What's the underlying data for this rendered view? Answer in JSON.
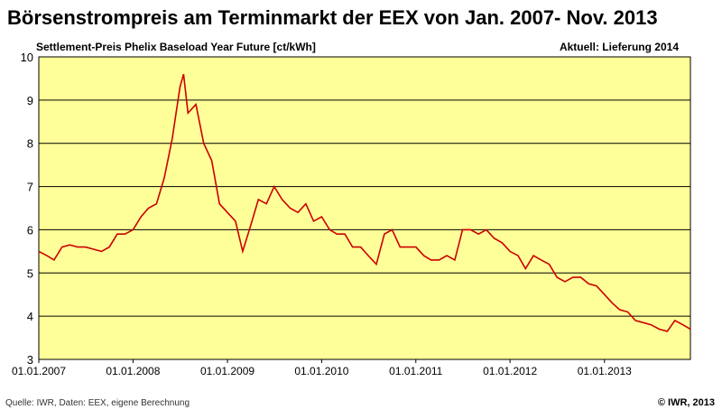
{
  "chart_data": {
    "type": "line",
    "title": "Börsenstrompreis am Terminmarkt der EEX von Jan. 2007- Nov. 2013",
    "subtitle_left": "Settlement-Preis  Phelix  Baseload  Year  Future  [ct/kWh]",
    "subtitle_right": "Aktuell:  Lieferung  2014",
    "source": "Quelle:  IWR, Daten: EEX, eigene Berechnung",
    "copyright": "© IWR, 2013",
    "ylim": [
      3,
      10
    ],
    "yticks": [
      "3",
      "4",
      "5",
      "6",
      "7",
      "8",
      "9",
      "10"
    ],
    "xlim": [
      "2007-01-01",
      "2013-11-30"
    ],
    "xticks": [
      "01.01.2007",
      "01.01.2008",
      "01.01.2009",
      "01.01.2010",
      "01.01.2011",
      "01.01.2012",
      "01.01.2013"
    ],
    "grid": true,
    "colors": {
      "plot_bg": "#ffff99",
      "line": "#cc0000",
      "grid": "#000000"
    },
    "series": [
      {
        "x": [
          "2007-01-01",
          "2007-02-01",
          "2007-03-01",
          "2007-04-01",
          "2007-05-01",
          "2007-06-01",
          "2007-07-01",
          "2007-08-01",
          "2007-09-01",
          "2007-10-01",
          "2007-11-01",
          "2007-12-01",
          "2008-01-01",
          "2008-02-01",
          "2008-03-01",
          "2008-04-01",
          "2008-05-01",
          "2008-06-01",
          "2008-07-01",
          "2008-07-15",
          "2008-08-01",
          "2008-09-01",
          "2008-10-01",
          "2008-11-01",
          "2008-12-01",
          "2009-01-01",
          "2009-02-01",
          "2009-03-01",
          "2009-04-01",
          "2009-05-01",
          "2009-06-01",
          "2009-07-01",
          "2009-08-01",
          "2009-09-01",
          "2009-10-01",
          "2009-11-01",
          "2009-12-01",
          "2010-01-01",
          "2010-02-01",
          "2010-03-01",
          "2010-04-01",
          "2010-05-01",
          "2010-06-01",
          "2010-07-01",
          "2010-08-01",
          "2010-09-01",
          "2010-10-01",
          "2010-11-01",
          "2010-12-01",
          "2011-01-01",
          "2011-02-01",
          "2011-03-01",
          "2011-04-01",
          "2011-05-01",
          "2011-06-01",
          "2011-07-01",
          "2011-08-01",
          "2011-09-01",
          "2011-10-01",
          "2011-11-01",
          "2011-12-01",
          "2012-01-01",
          "2012-02-01",
          "2012-03-01",
          "2012-04-01",
          "2012-05-01",
          "2012-06-01",
          "2012-07-01",
          "2012-08-01",
          "2012-09-01",
          "2012-10-01",
          "2012-11-01",
          "2012-12-01",
          "2013-01-01",
          "2013-02-01",
          "2013-03-01",
          "2013-04-01",
          "2013-05-01",
          "2013-06-01",
          "2013-07-01",
          "2013-08-01",
          "2013-09-01",
          "2013-10-01",
          "2013-11-01",
          "2013-11-30"
        ],
        "values": [
          5.5,
          5.4,
          5.3,
          5.6,
          5.65,
          5.6,
          5.6,
          5.55,
          5.5,
          5.6,
          5.9,
          5.9,
          6.0,
          6.3,
          6.5,
          6.6,
          7.2,
          8.1,
          9.3,
          9.6,
          8.7,
          8.9,
          8.0,
          7.6,
          6.6,
          6.4,
          6.2,
          5.5,
          6.1,
          6.7,
          6.6,
          7.0,
          6.7,
          6.5,
          6.4,
          6.6,
          6.2,
          6.3,
          6.0,
          5.9,
          5.9,
          5.6,
          5.6,
          5.4,
          5.2,
          5.9,
          6.0,
          5.6,
          5.6,
          5.6,
          5.4,
          5.3,
          5.3,
          5.4,
          5.3,
          6.0,
          6.0,
          5.9,
          6.0,
          5.8,
          5.7,
          5.5,
          5.4,
          5.1,
          5.4,
          5.3,
          5.2,
          4.9,
          4.8,
          4.9,
          4.9,
          4.75,
          4.7,
          4.5,
          4.3,
          4.15,
          4.1,
          3.9,
          3.85,
          3.8,
          3.7,
          3.65,
          3.9,
          3.8,
          3.7
        ]
      }
    ]
  }
}
